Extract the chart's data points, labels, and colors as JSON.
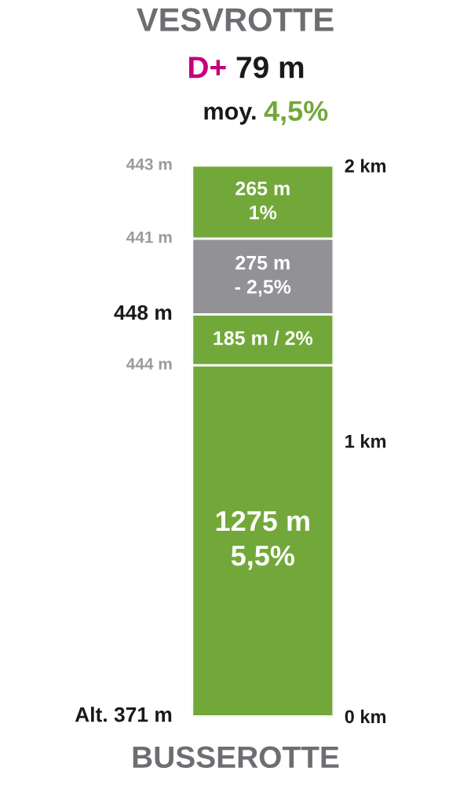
{
  "chart_data": {
    "type": "bar",
    "stacked": true,
    "title": "VESVROTTE",
    "subtitle": "D+ 79 m",
    "xlabel": "BUSSEROTTE",
    "categories": [
      null
    ],
    "series": [
      {
        "color": "#72a83a",
        "values": [
          1.275
        ]
      },
      {
        "color": "#72a83a",
        "values": [
          0.185
        ]
      },
      {
        "color": "#929296",
        "values": [
          0.275
        ]
      },
      {
        "color": "#72a83a",
        "values": [
          0.265
        ]
      }
    ],
    "ylim": [
      0,
      2
    ],
    "yticks": [
      {
        "value": 0,
        "label": "0 km"
      },
      {
        "value": 1,
        "label": "1 km"
      },
      {
        "value": 2,
        "label": "2 km"
      }
    ],
    "annotations": [
      "moy. 4,5%",
      "Alt. 371 m",
      "444 m",
      "448 m",
      "441 m",
      "443 m",
      "1275 m\n5,5%",
      "185 m / 2%",
      "275 m\n- 2,5%",
      "265 m\n1%"
    ],
    "grid": false,
    "legend": false
  }
}
